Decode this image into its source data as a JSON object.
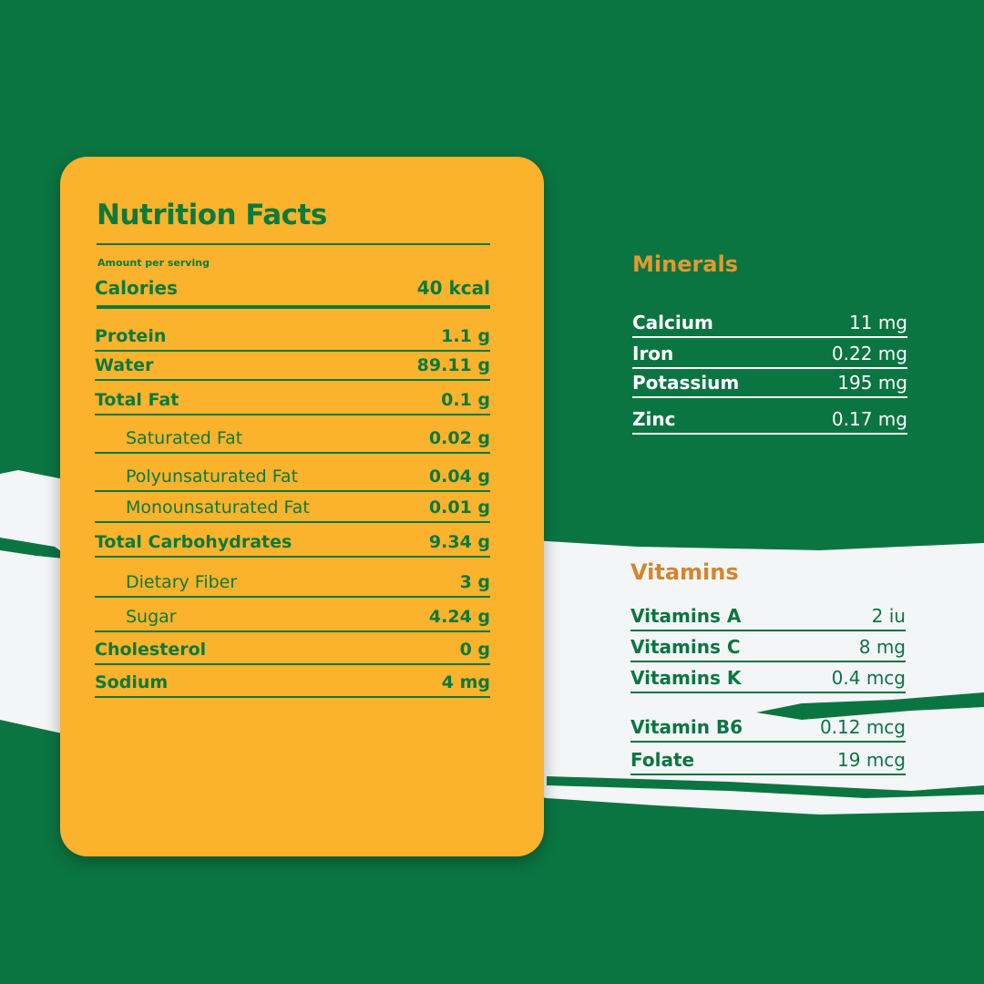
{
  "colors": {
    "background": "#0b7542",
    "card": "#fbb22c",
    "text_green": "#0b7a3b",
    "heading_orange": "#e09a32",
    "brush_white": "#f3f5f6"
  },
  "nutrition": {
    "title": "Nutrition Facts",
    "amount_per_serving": "Amount per serving",
    "calories": {
      "label": "Calories",
      "value": "40 kcal"
    },
    "rows": [
      {
        "label": "Protein",
        "value": "1.1 g",
        "sub": false
      },
      {
        "label": "Water",
        "value": "89.11 g",
        "sub": false
      },
      {
        "label": "Total Fat",
        "value": "0.1 g",
        "sub": false
      },
      {
        "label": "Saturated Fat",
        "value": "0.02 g",
        "sub": true
      },
      {
        "label": "Polyunsaturated Fat",
        "value": "0.04 g",
        "sub": true
      },
      {
        "label": "Monounsaturated Fat",
        "value": "0.01 g",
        "sub": true
      },
      {
        "label": "Total Carbohydrates",
        "value": "9.34 g",
        "sub": false
      },
      {
        "label": "Dietary Fiber",
        "value": "3 g",
        "sub": true
      },
      {
        "label": "Sugar",
        "value": "4.24 g",
        "sub": true
      },
      {
        "label": "Cholesterol",
        "value": "0 g",
        "sub": false
      },
      {
        "label": "Sodium",
        "value": "4 mg",
        "sub": false
      }
    ]
  },
  "minerals": {
    "title": "Minerals",
    "rows": [
      {
        "label": "Calcium",
        "value": "11 mg"
      },
      {
        "label": "Iron",
        "value": "0.22 mg"
      },
      {
        "label": "Potassium",
        "value": "195 mg"
      },
      {
        "label": "Zinc",
        "value": "0.17 mg"
      }
    ]
  },
  "vitamins": {
    "title": "Vitamins",
    "rows": [
      {
        "label": "Vitamins A",
        "value": "2 iu"
      },
      {
        "label": "Vitamins C",
        "value": "8 mg"
      },
      {
        "label": "Vitamins K",
        "value": "0.4 mcg"
      },
      {
        "label": "Vitamin B6",
        "value": "0.12 mcg"
      },
      {
        "label": "Folate",
        "value": "19 mcg"
      }
    ]
  }
}
